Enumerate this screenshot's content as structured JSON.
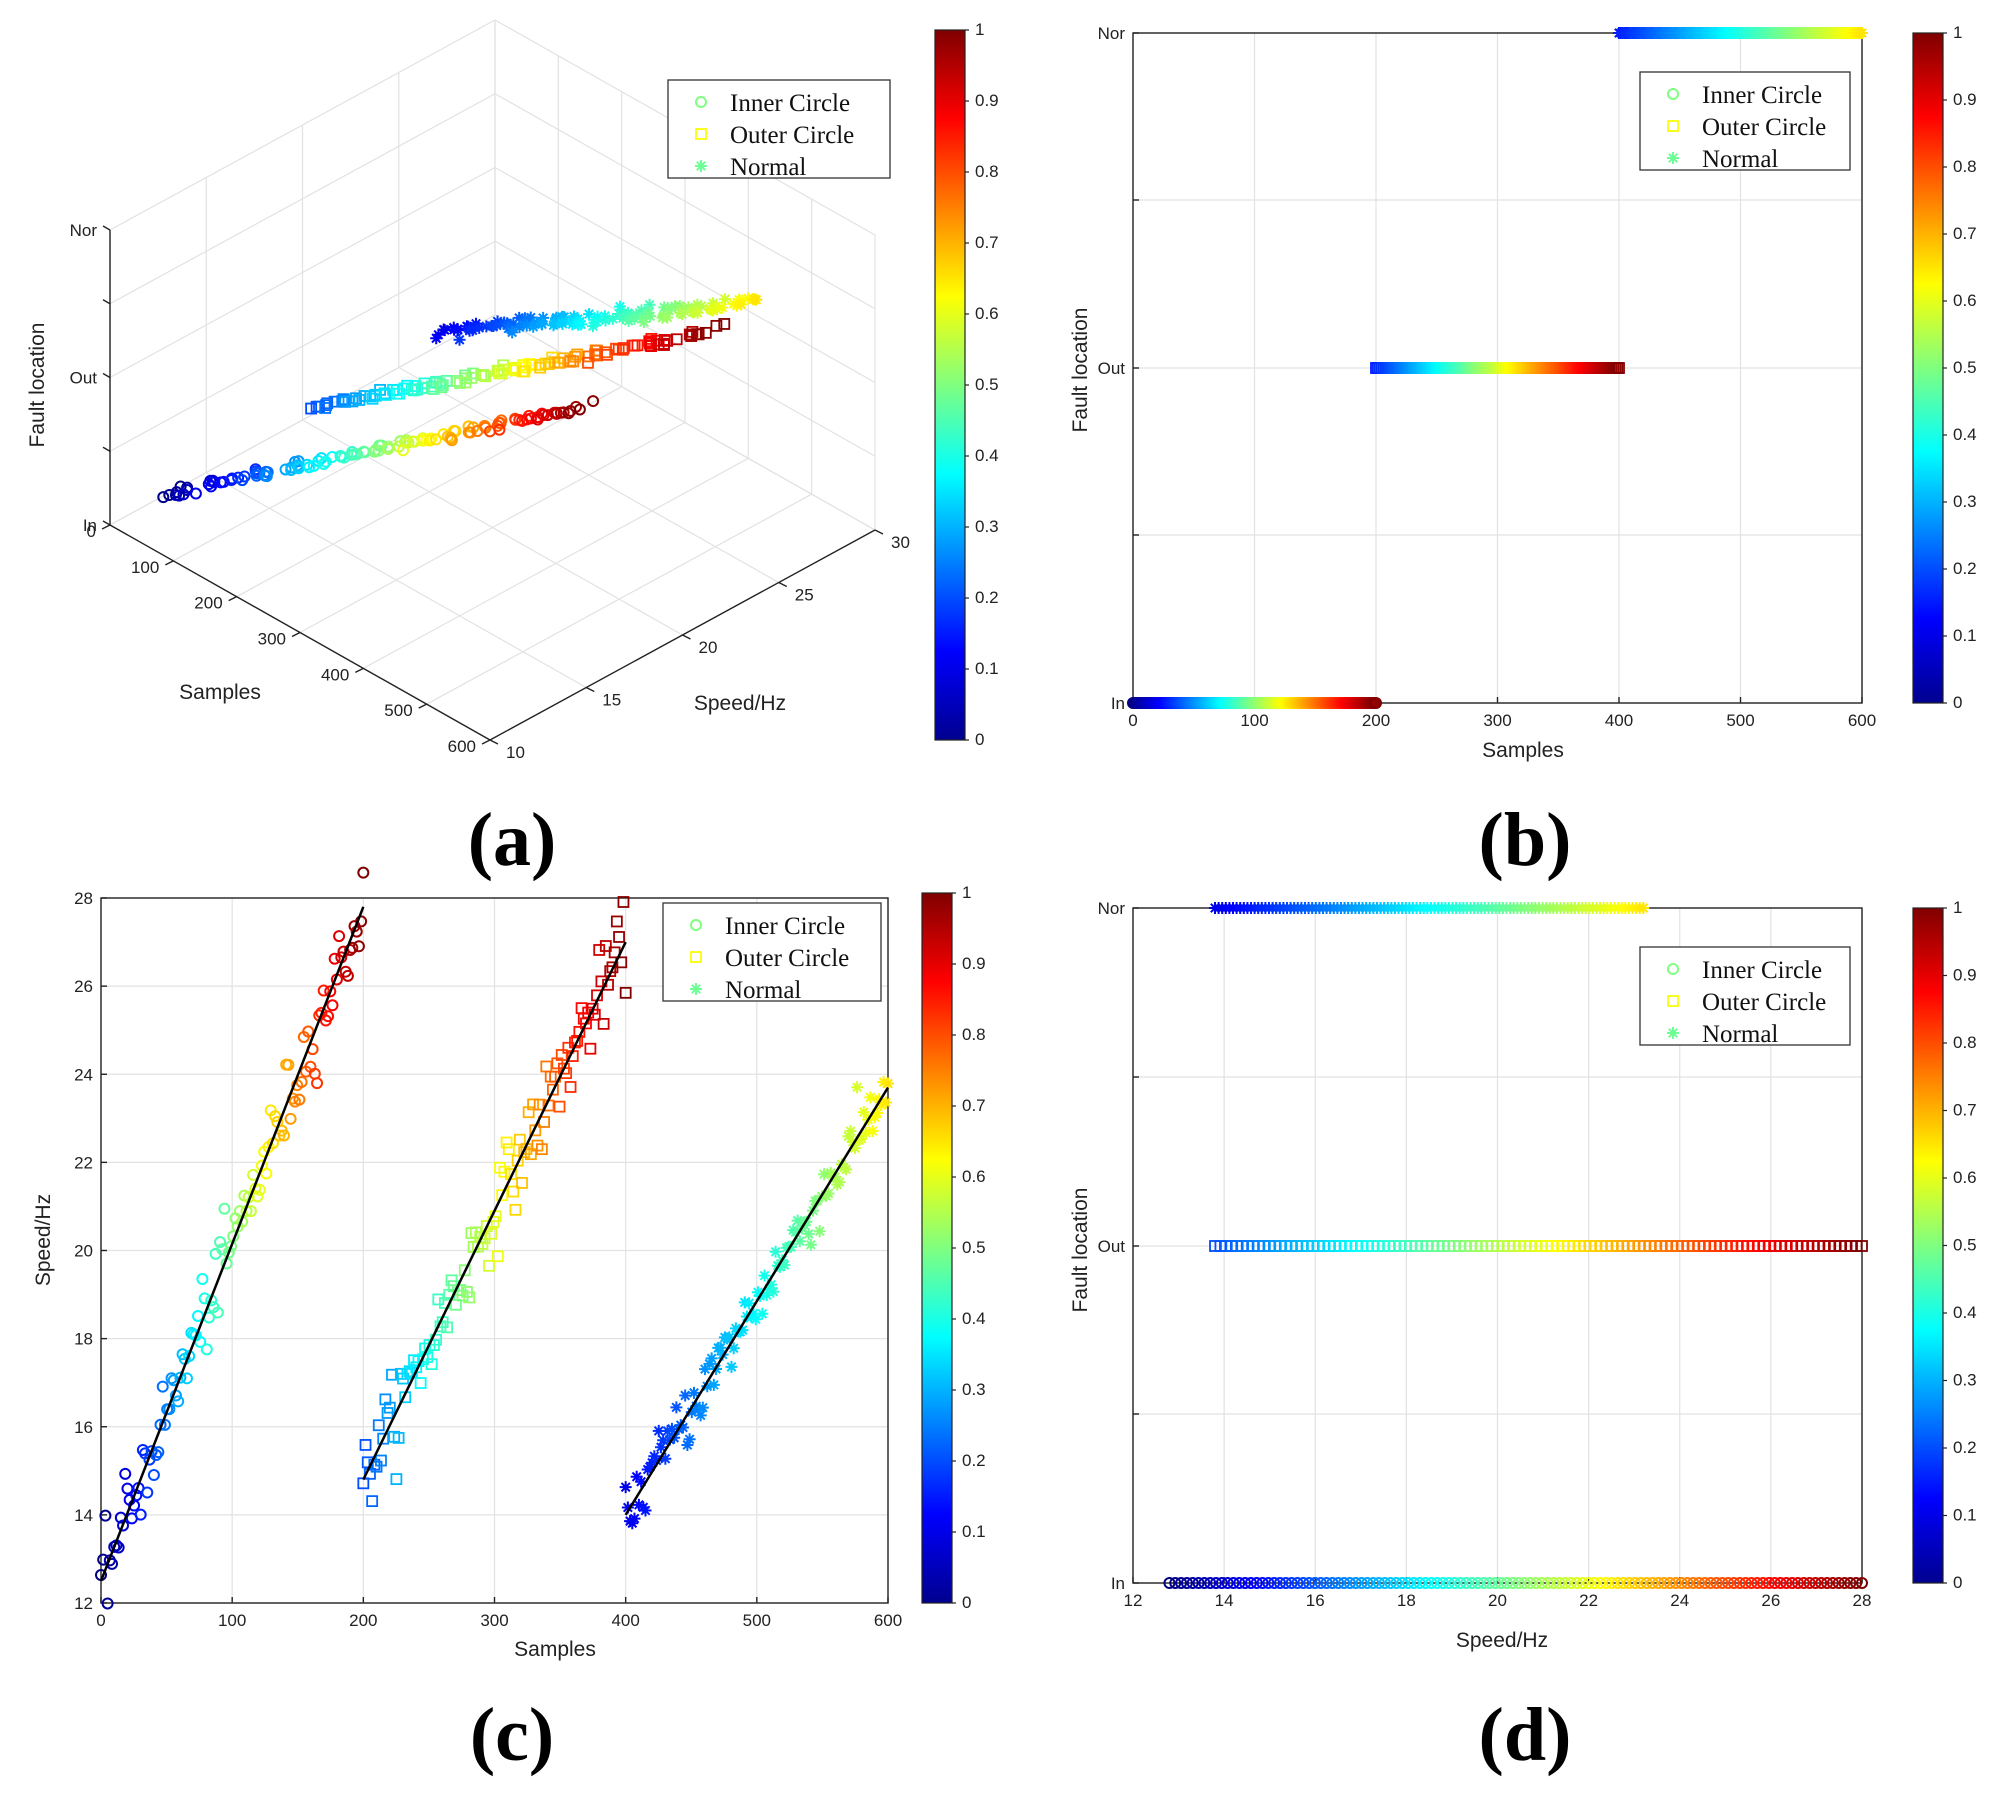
{
  "colormap": "jet",
  "chart_data": [
    {
      "panel": "(a)",
      "type": "scatter",
      "projection": "3d",
      "xlabel": "Samples",
      "ylabel": "Speed/Hz",
      "zlabel": "Fault location",
      "xticks": [
        "0",
        "100",
        "200",
        "300",
        "400",
        "500",
        "600"
      ],
      "yticks": [
        "10",
        "15",
        "20",
        "25",
        "30"
      ],
      "zticks": [
        "In",
        "Out",
        "Nor"
      ],
      "xlim": [
        0,
        600
      ],
      "ylim": [
        10,
        30
      ],
      "colorbar_ticks": [
        "0",
        "0.1",
        "0.2",
        "0.3",
        "0.4",
        "0.5",
        "0.6",
        "0.7",
        "0.8",
        "0.9",
        "1"
      ],
      "legend": [
        "Inner Circle",
        "Outer Circle",
        "Normal"
      ],
      "series": [
        {
          "name": "Inner Circle",
          "marker": "o",
          "samples": [
            0,
            200
          ],
          "speed": [
            13,
            28
          ],
          "location": "In",
          "color_range": [
            0,
            1
          ]
        },
        {
          "name": "Outer Circle",
          "marker": "s",
          "samples": [
            200,
            400
          ],
          "speed": [
            14,
            28
          ],
          "location": "Out",
          "color_range": [
            0.2,
            1
          ]
        },
        {
          "name": "Normal",
          "marker": "*",
          "samples": [
            400,
            600
          ],
          "speed": [
            14,
            23.5
          ],
          "location": "Nor",
          "color_range": [
            0.1,
            0.65
          ]
        }
      ]
    },
    {
      "panel": "(b)",
      "type": "scatter",
      "xlabel": "Samples",
      "ylabel": "Fault location",
      "xticks": [
        "0",
        "100",
        "200",
        "300",
        "400",
        "500",
        "600"
      ],
      "yticks": [
        "In",
        "Out",
        "Nor"
      ],
      "xlim": [
        0,
        600
      ],
      "colorbar_ticks": [
        "0",
        "0.1",
        "0.2",
        "0.3",
        "0.4",
        "0.5",
        "0.6",
        "0.7",
        "0.8",
        "0.9",
        "1"
      ],
      "legend": [
        "Inner Circle",
        "Outer Circle",
        "Normal"
      ],
      "series": [
        {
          "name": "Inner Circle",
          "marker": "o",
          "samples": [
            0,
            200
          ],
          "location": "In",
          "color_range": [
            0,
            1
          ]
        },
        {
          "name": "Outer Circle",
          "marker": "s",
          "samples": [
            200,
            400
          ],
          "location": "Out",
          "color_range": [
            0.15,
            1
          ]
        },
        {
          "name": "Normal",
          "marker": "*",
          "samples": [
            400,
            600
          ],
          "location": "Nor",
          "color_range": [
            0.15,
            0.65
          ]
        }
      ]
    },
    {
      "panel": "(c)",
      "type": "scatter",
      "xlabel": "Samples",
      "ylabel": "Speed/Hz",
      "xticks": [
        "0",
        "100",
        "200",
        "300",
        "400",
        "500",
        "600"
      ],
      "yticks": [
        "12",
        "14",
        "16",
        "18",
        "20",
        "22",
        "24",
        "26",
        "28"
      ],
      "xlim": [
        0,
        600
      ],
      "ylim": [
        12,
        28
      ],
      "colorbar_ticks": [
        "0",
        "0.1",
        "0.2",
        "0.3",
        "0.4",
        "0.5",
        "0.6",
        "0.7",
        "0.8",
        "0.9",
        "1"
      ],
      "legend": [
        "Inner Circle",
        "Outer Circle",
        "Normal"
      ],
      "series": [
        {
          "name": "Inner Circle",
          "marker": "o",
          "samples": [
            0,
            200
          ],
          "speed": [
            12.5,
            27.8
          ],
          "color_range": [
            0,
            1
          ]
        },
        {
          "name": "Outer Circle",
          "marker": "s",
          "samples": [
            200,
            400
          ],
          "speed": [
            14.8,
            27
          ],
          "color_range": [
            0.2,
            1
          ]
        },
        {
          "name": "Normal",
          "marker": "*",
          "samples": [
            400,
            600
          ],
          "speed": [
            14,
            23.7
          ],
          "color_range": [
            0.1,
            0.65
          ]
        }
      ],
      "fit_lines": [
        {
          "x": [
            0,
            200
          ],
          "y": [
            12.5,
            27.8
          ]
        },
        {
          "x": [
            200,
            400
          ],
          "y": [
            14.8,
            27.0
          ]
        },
        {
          "x": [
            400,
            600
          ],
          "y": [
            14.0,
            23.7
          ]
        }
      ]
    },
    {
      "panel": "(d)",
      "type": "scatter",
      "xlabel": "Speed/Hz",
      "ylabel": "Fault location",
      "xticks": [
        "12",
        "14",
        "16",
        "18",
        "20",
        "22",
        "24",
        "26",
        "28"
      ],
      "yticks": [
        "In",
        "Out",
        "Nor"
      ],
      "xlim": [
        12,
        28
      ],
      "colorbar_ticks": [
        "0",
        "0.1",
        "0.2",
        "0.3",
        "0.4",
        "0.5",
        "0.6",
        "0.7",
        "0.8",
        "0.9",
        "1"
      ],
      "legend": [
        "Inner Circle",
        "Outer Circle",
        "Normal"
      ],
      "series": [
        {
          "name": "Inner Circle",
          "marker": "o",
          "speed": [
            12.8,
            28
          ],
          "location": "In",
          "color_range": [
            0,
            1
          ]
        },
        {
          "name": "Outer Circle",
          "marker": "s",
          "speed": [
            13.8,
            28
          ],
          "location": "Out",
          "color_range": [
            0.2,
            1
          ]
        },
        {
          "name": "Normal",
          "marker": "*",
          "speed": [
            13.8,
            23.2
          ],
          "location": "Nor",
          "color_range": [
            0.1,
            0.65
          ]
        }
      ]
    }
  ]
}
